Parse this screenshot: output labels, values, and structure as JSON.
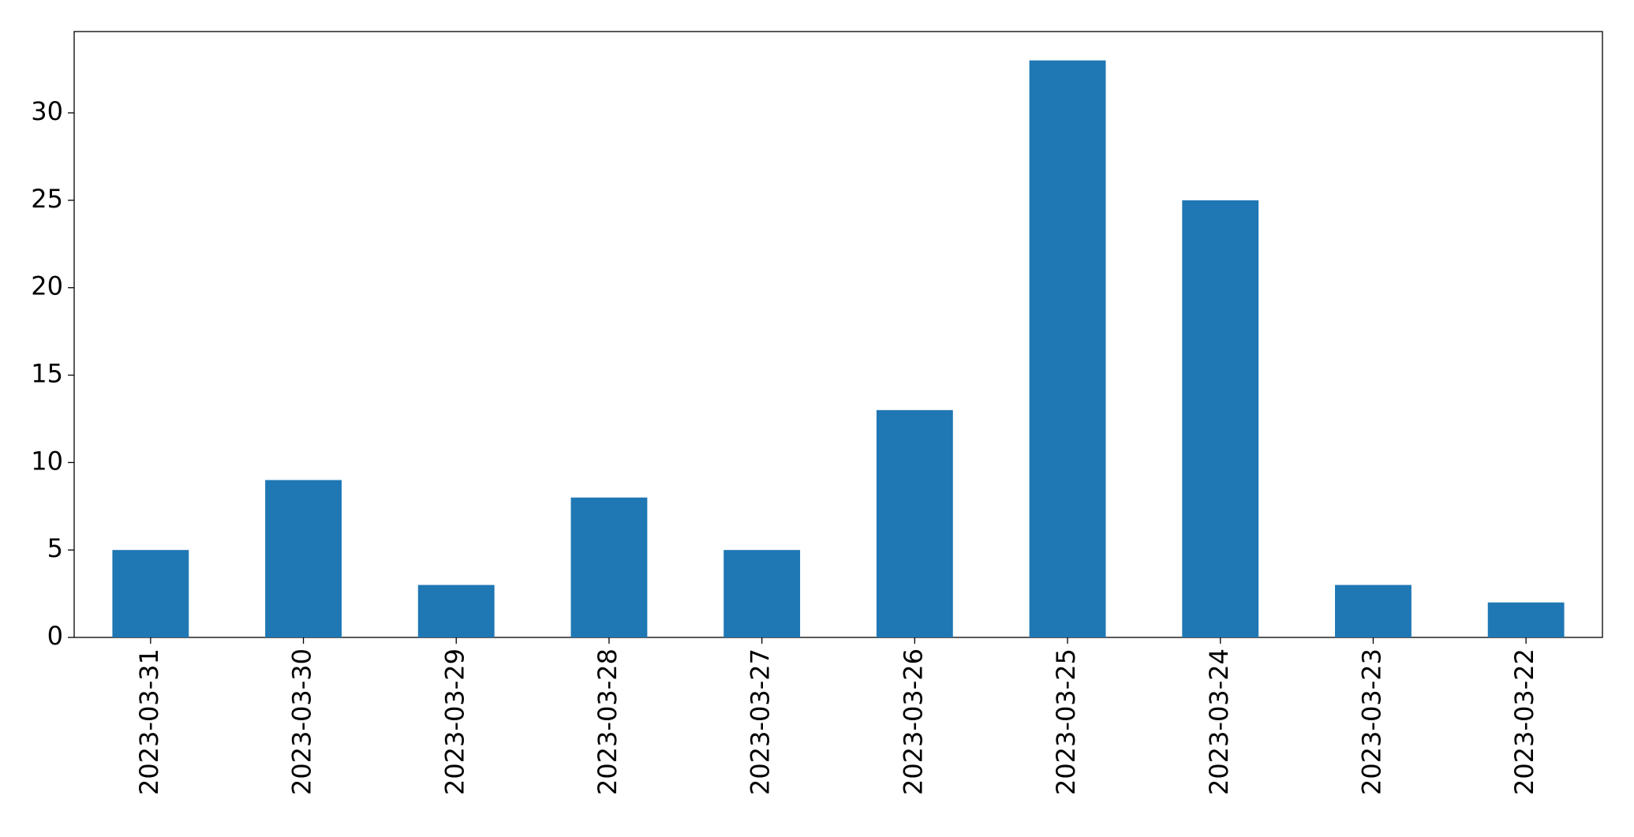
{
  "chart_data": {
    "type": "bar",
    "categories": [
      "2023-03-31",
      "2023-03-30",
      "2023-03-29",
      "2023-03-28",
      "2023-03-27",
      "2023-03-26",
      "2023-03-25",
      "2023-03-24",
      "2023-03-23",
      "2023-03-22"
    ],
    "values": [
      5,
      9,
      3,
      8,
      5,
      13,
      33,
      25,
      3,
      2
    ],
    "color": "#1f77b4",
    "ylim": [
      0,
      34.65
    ],
    "yticks": [
      0,
      5,
      10,
      15,
      20,
      25,
      30
    ],
    "grid": false
  }
}
